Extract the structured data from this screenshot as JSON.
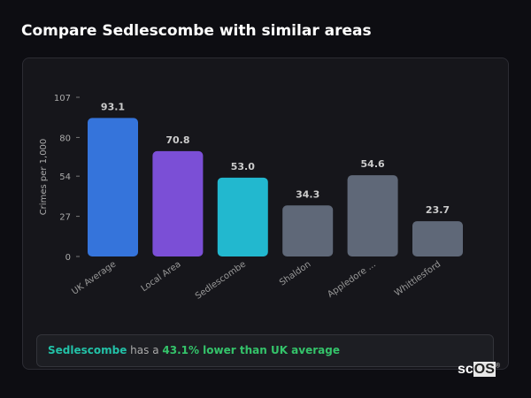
{
  "title": "Compare Sedlescombe with similar areas",
  "chart_data": {
    "type": "bar",
    "ylabel": "Crimes per 1,000",
    "yticks": [
      0,
      27,
      54,
      80,
      107
    ],
    "ylim": [
      0,
      107
    ],
    "categories": [
      "UK Average",
      "Local Area",
      "Sedlescombe",
      "Shaldon",
      "Appledore ...",
      "Whittlesford"
    ],
    "values": [
      93.1,
      70.8,
      53.0,
      34.3,
      54.6,
      23.7
    ],
    "labels": [
      "93.1",
      "70.8",
      "53.0",
      "34.3",
      "54.6",
      "23.7"
    ],
    "colors": [
      "#3574db",
      "#7b4fd6",
      "#22b8cf",
      "#5f6878",
      "#5f6878",
      "#5f6878"
    ]
  },
  "summary": {
    "place": "Sedlescombe",
    "middle": " has a ",
    "comparison": "43.1% lower than UK average"
  },
  "logo": {
    "text_a": "sc",
    "text_b": "OS",
    "mark": "®"
  }
}
